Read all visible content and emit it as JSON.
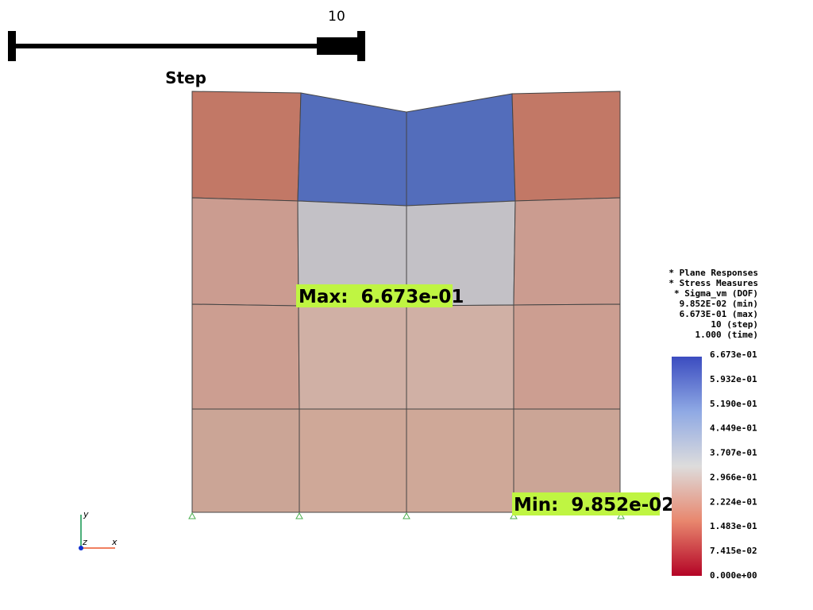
{
  "slider": {
    "value_label": "10",
    "title": "Step"
  },
  "annotations": {
    "max": "Max:  6.673e-01",
    "min": "Min:  9.852e-02"
  },
  "info": [
    "* Plane Responses",
    "* Stress Measures",
    "* Sigma_vm (DOF)",
    "9.852E-02 (min)",
    "6.673E-01 (max)",
    "10 (step)",
    "1.000 (time)"
  ],
  "colorbar": {
    "labels": [
      "6.673e-01",
      "5.932e-01",
      "5.190e-01",
      "4.449e-01",
      "3.707e-01",
      "2.966e-01",
      "2.224e-01",
      "1.483e-01",
      "7.415e-02",
      "0.000e+00"
    ]
  },
  "axes": {
    "x": "x",
    "y": "y",
    "z": "z"
  }
}
